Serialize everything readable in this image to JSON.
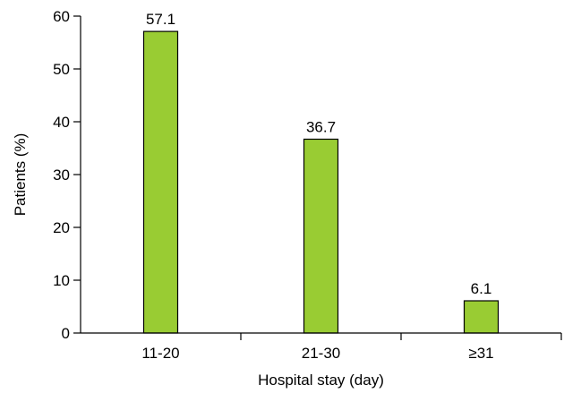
{
  "chart_data": {
    "type": "bar",
    "categories": [
      "11-20",
      "21-30",
      "≥31"
    ],
    "values": [
      57.1,
      36.7,
      6.1
    ],
    "data_labels": [
      "57.1",
      "36.7",
      "6.1"
    ],
    "title": "",
    "xlabel": "Hospital stay (day)",
    "ylabel": "Patients (%)",
    "ylim": [
      0,
      60
    ],
    "yticks": [
      0,
      10,
      20,
      30,
      40,
      50,
      60
    ],
    "grid": false,
    "legend": "none",
    "bar_color": "#99cc33"
  }
}
